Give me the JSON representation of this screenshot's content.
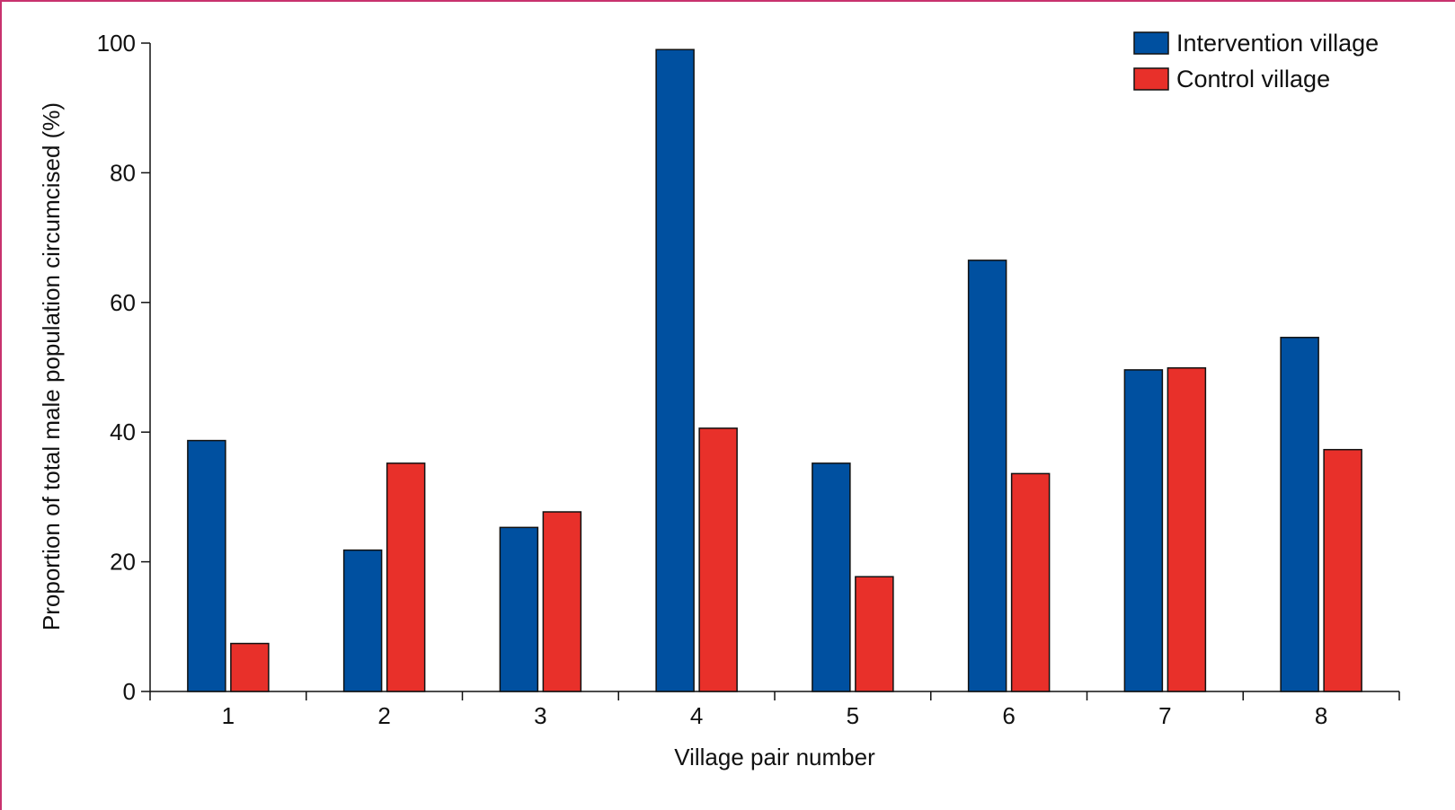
{
  "chart_data": {
    "type": "bar",
    "xlabel": "Village pair number",
    "ylabel": "Proportion of total male population circumcised (%)",
    "categories": [
      "1",
      "2",
      "3",
      "4",
      "5",
      "6",
      "7",
      "8"
    ],
    "series": [
      {
        "name": "Intervention village",
        "color": "#0050a0",
        "values": [
          38.7,
          21.8,
          25.3,
          99.0,
          35.2,
          66.5,
          49.6,
          54.6
        ]
      },
      {
        "name": "Control village",
        "color": "#e8302a",
        "values": [
          7.4,
          35.2,
          27.7,
          40.6,
          17.7,
          33.6,
          49.9,
          37.3
        ]
      }
    ],
    "ylim": [
      0,
      100
    ],
    "yticks": [
      0,
      20,
      40,
      60,
      80,
      100
    ],
    "grid": false,
    "legend_position": "top-right"
  }
}
